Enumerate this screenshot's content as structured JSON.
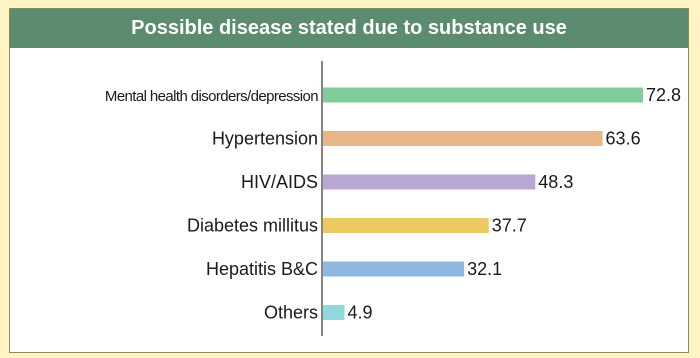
{
  "chart_data": {
    "type": "bar",
    "orientation": "horizontal",
    "title": "Possible disease stated due to substance use",
    "categories": [
      "Mental health disorders/depression",
      "Hypertension",
      "HIV/AIDS",
      "Diabetes millitus",
      "Hepatitis B&C",
      "Others"
    ],
    "values": [
      72.8,
      63.6,
      48.3,
      37.7,
      32.1,
      4.9
    ],
    "data_labels": [
      "72.8",
      "63.6",
      "48.3",
      "37.7",
      "32.1",
      "4.9"
    ],
    "colors": [
      "#82cc9b",
      "#e8b688",
      "#baa8d4",
      "#edc963",
      "#8eb8e2",
      "#8fd8dc"
    ],
    "xlim": [
      0,
      72.8
    ],
    "grid": false,
    "legend": "none"
  },
  "style": {
    "background": "#fff4c4",
    "panel": "#ffffff",
    "title_bar": "#5b8c70",
    "title_text": "#ffffff",
    "axis": "#333333",
    "text": "#1a1a1a"
  }
}
